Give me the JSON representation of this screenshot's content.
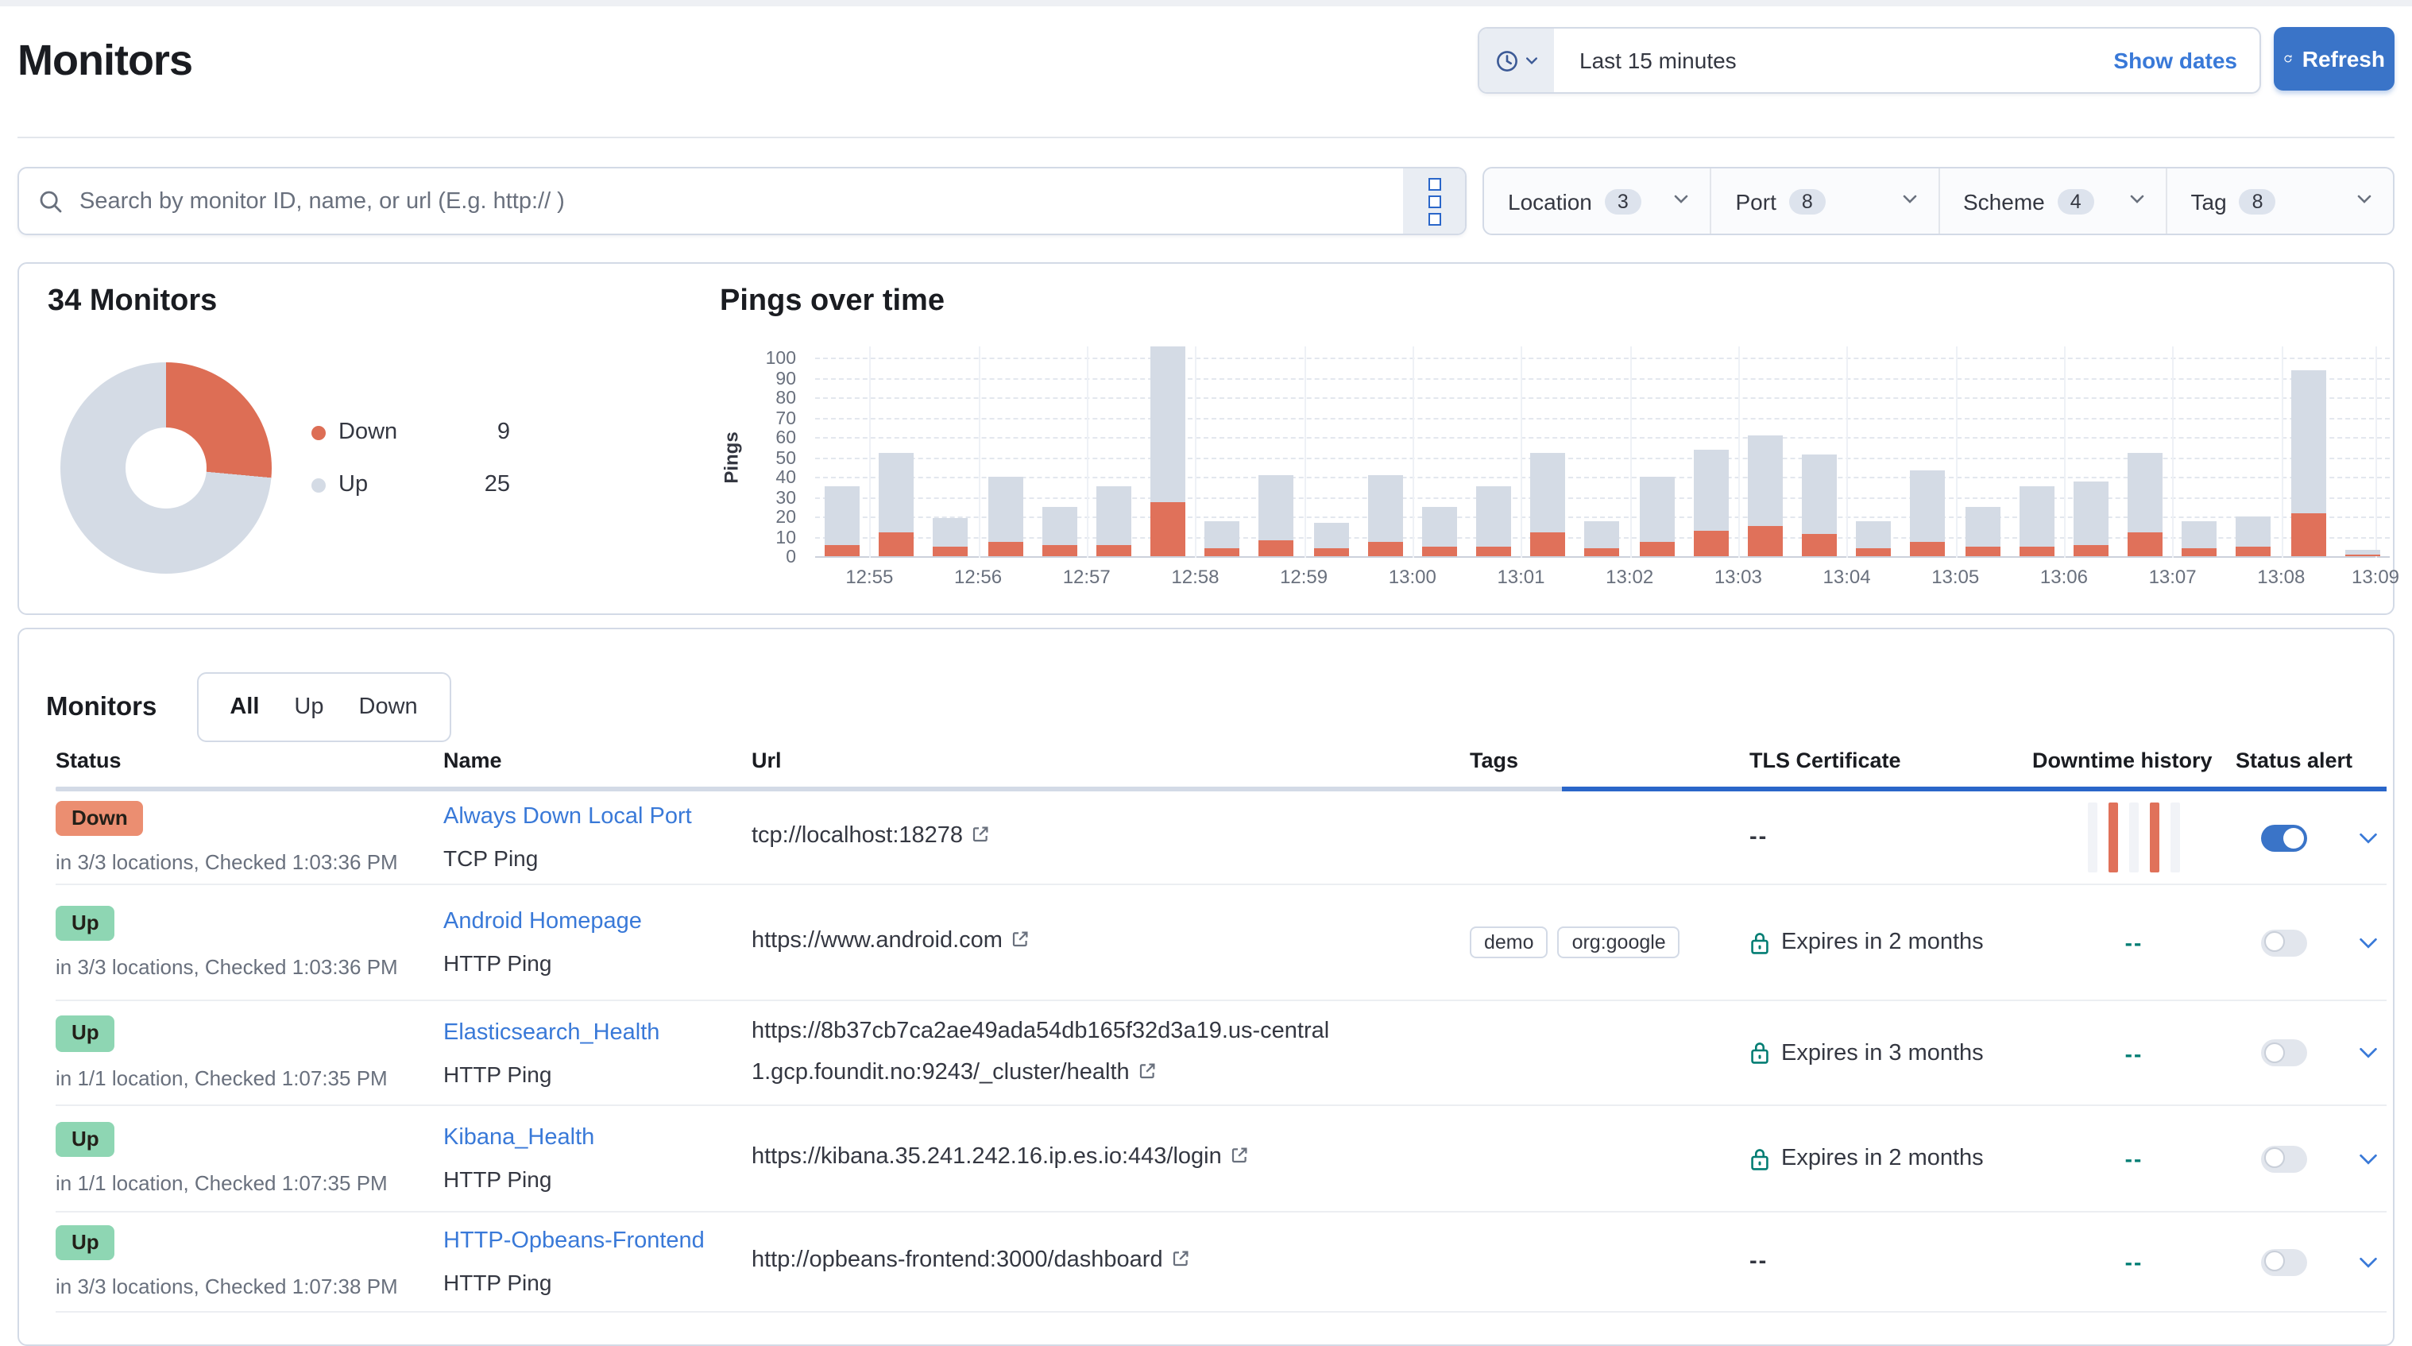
{
  "page_title": "Monitors",
  "colors": {
    "accent_blue": "#3a74c8",
    "link_blue": "#3979d8",
    "loading_bar_blue": "#2a66c9",
    "down_orange": "#e0715a",
    "up_gray": "#d4dbe5",
    "down_badge_bg": "#eb8e71",
    "up_badge_bg": "#8ed6b3",
    "success_green": "#017d73",
    "subdued_text": "#69707d"
  },
  "time_picker": {
    "value": "Last 15 minutes",
    "show_dates_label": "Show dates",
    "refresh_label": "Refresh"
  },
  "search": {
    "placeholder": "Search by monitor ID, name, or url (E.g. http:// )"
  },
  "filters": [
    {
      "label": "Location",
      "count": "3"
    },
    {
      "label": "Port",
      "count": "8"
    },
    {
      "label": "Scheme",
      "count": "4"
    },
    {
      "label": "Tag",
      "count": "8"
    }
  ],
  "overview": {
    "title": "34 Monitors"
  },
  "pings": {
    "title": "Pings over time",
    "ylabel": "Pings"
  },
  "chart_data": [
    {
      "type": "pie",
      "donut": true,
      "title": "34 Monitors",
      "labels": [
        "Down",
        "Up"
      ],
      "values": [
        9,
        25
      ],
      "colors": [
        "#dd6e55",
        "#d4dbe5"
      ],
      "legend_position": "right",
      "start_angle_deg": 0
    },
    {
      "type": "bar",
      "stacked": true,
      "title": "Pings over time",
      "xlabel": "",
      "ylabel": "Pings",
      "ylim": [
        0,
        100
      ],
      "yticks": [
        0,
        10,
        20,
        30,
        40,
        50,
        60,
        70,
        80,
        90,
        100
      ],
      "grid": true,
      "bucket_interval": "30s",
      "x_tick_labels": [
        "12:55",
        "12:56",
        "12:57",
        "12:58",
        "12:59",
        "13:00",
        "13:01",
        "13:02",
        "13:03",
        "13:04",
        "13:05",
        "13:06",
        "13:07",
        "13:08",
        "13:09"
      ],
      "series": [
        {
          "name": "Down",
          "color": "#e0715a",
          "values": [
            6,
            12,
            5,
            7,
            6,
            6,
            27,
            4,
            8,
            4,
            7,
            5,
            5,
            12,
            4,
            7,
            13,
            15,
            11,
            4,
            7,
            5,
            5,
            6,
            12,
            4,
            5,
            22,
            1
          ]
        },
        {
          "name": "Up",
          "color": "#d4dbe5",
          "values": [
            29,
            40,
            14,
            33,
            19,
            29,
            80,
            14,
            33,
            13,
            34,
            20,
            30,
            40,
            14,
            33,
            41,
            46,
            40,
            14,
            36,
            20,
            30,
            32,
            40,
            14,
            15,
            72,
            2
          ]
        }
      ]
    }
  ],
  "monitors_table": {
    "title": "Monitors",
    "tabs": [
      "All",
      "Up",
      "Down"
    ],
    "active_tab": "All",
    "columns": [
      "Status",
      "Name",
      "Url",
      "Tags",
      "TLS Certificate",
      "Downtime history",
      "Status alert"
    ],
    "rows": [
      {
        "status": "Down",
        "status_detail": "in 3/3 locations, Checked 1:03:36 PM",
        "name": "Always Down Local Port",
        "type": "TCP Ping",
        "url": "tcp://localhost:18278",
        "tags": [],
        "tls": "--",
        "downtime": "sparkline",
        "alert_on": true
      },
      {
        "status": "Up",
        "status_detail": "in 3/3 locations, Checked 1:03:36 PM",
        "name": "Android Homepage",
        "type": "HTTP Ping",
        "url": "https://www.android.com",
        "tags": [
          "demo",
          "org:google"
        ],
        "tls": "Expires in 2 months",
        "downtime": "--",
        "alert_on": false
      },
      {
        "status": "Up",
        "status_detail": "in 1/1 location, Checked 1:07:35 PM",
        "name": "Elasticsearch_Health",
        "type": "HTTP Ping",
        "url": "https://8b37cb7ca2ae49ada54db165f32d3a19.us-central1.gcp.foundit.no:9243/_cluster/health",
        "tags": [],
        "tls": "Expires in 3 months",
        "downtime": "--",
        "alert_on": false
      },
      {
        "status": "Up",
        "status_detail": "in 1/1 location, Checked 1:07:35 PM",
        "name": "Kibana_Health",
        "type": "HTTP Ping",
        "url": "https://kibana.35.241.242.16.ip.es.io:443/login",
        "tags": [],
        "tls": "Expires in 2 months",
        "downtime": "--",
        "alert_on": false
      },
      {
        "status": "Up",
        "status_detail": "in 3/3 locations, Checked 1:07:38 PM",
        "name": "HTTP-Opbeans-Frontend",
        "type": "HTTP Ping",
        "url": "http://opbeans-frontend:3000/dashboard",
        "tags": [],
        "tls": "--",
        "downtime": "--",
        "alert_on": false
      }
    ],
    "icons": {
      "search": "magnifier",
      "quick_select": "clock + chevron-down",
      "query_menu": "three-stacked-squares",
      "refresh": "circular-arrow",
      "tls_lock": "padlock",
      "external_link": "box-arrow",
      "row_expand": "chevron-down"
    }
  }
}
